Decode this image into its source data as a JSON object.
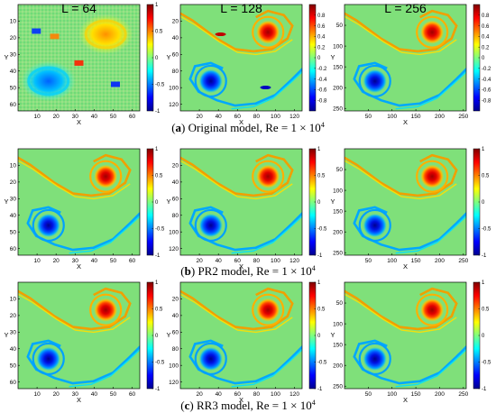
{
  "column_titles": [
    "L = 64",
    "L = 128",
    "L = 256"
  ],
  "rows": [
    {
      "tag": "a",
      "model": "Original model",
      "re_text": "Re = 1 × 10",
      "re_exp": "4",
      "tag_open": "(",
      "tag_close": ")"
    },
    {
      "tag": "b",
      "model": "PR2 model",
      "re_text": "Re = 1 × 10",
      "re_exp": "4",
      "tag_open": "(",
      "tag_close": ")"
    },
    {
      "tag": "c",
      "model": "RR3 model",
      "re_text": "Re = 1 × 10",
      "re_exp": "4",
      "tag_open": "(",
      "tag_close": ")"
    }
  ],
  "axis_labels": {
    "x": "X",
    "y": "Y"
  },
  "panels": [
    {
      "L": 64,
      "xticks": [
        10,
        20,
        30,
        40,
        50,
        60
      ],
      "yticks": [
        10,
        20,
        30,
        40,
        50,
        60
      ],
      "range": [
        0,
        64
      ]
    },
    {
      "L": 128,
      "xticks": [
        20,
        40,
        60,
        80,
        100,
        120
      ],
      "yticks": [
        20,
        40,
        60,
        80,
        100,
        120
      ],
      "range": [
        0,
        128
      ]
    },
    {
      "L": 256,
      "xticks": [
        50,
        100,
        150,
        200,
        250
      ],
      "yticks": [
        50,
        100,
        150,
        200,
        250
      ],
      "range": [
        0,
        256
      ]
    }
  ],
  "colorbar_ticks": {
    "L64": [
      "1",
      "0.5",
      "0",
      "-0.5",
      "-1"
    ],
    "L128": [
      "0.8",
      "0.6",
      "0.4",
      "0.2",
      "0",
      "-0.2",
      "-0.4",
      "-0.6",
      "-0.8"
    ],
    "L256": [
      "0.8",
      "0.6",
      "0.4",
      "0.2",
      "0",
      "-0.2",
      "-0.4",
      "-0.6",
      "-0.8"
    ],
    "full": [
      "1",
      "0.5",
      "0",
      "-0.5",
      "-1"
    ]
  },
  "colors": {
    "background": "#7fe07a",
    "positive": "#b00000",
    "negative": "#00008f"
  }
}
